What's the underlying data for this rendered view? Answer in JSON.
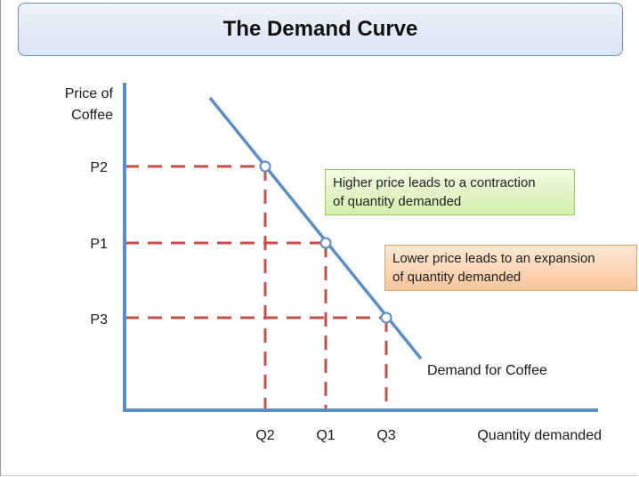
{
  "title": "The Demand Curve",
  "axes": {
    "y_label_line1": "Price of",
    "y_label_line2": "Coffee",
    "x_label": "Quantity demanded"
  },
  "prices": {
    "p2": "P2",
    "p1": "P1",
    "p3": "P3"
  },
  "quantities": {
    "q2": "Q2",
    "q1": "Q1",
    "q3": "Q3"
  },
  "curve_label": "Demand for Coffee",
  "notes": {
    "contraction_line1": "Higher price leads to a contraction",
    "contraction_line2": "of quantity demanded",
    "expansion_line1": "Lower price leads to an expansion",
    "expansion_line2": "of quantity demanded"
  },
  "colors": {
    "axis": "#5b8cc6",
    "curve": "#5b8cc6",
    "dashes": "#c0504d",
    "contraction_note": "#d3efae",
    "expansion_note": "#f8c79d"
  }
}
